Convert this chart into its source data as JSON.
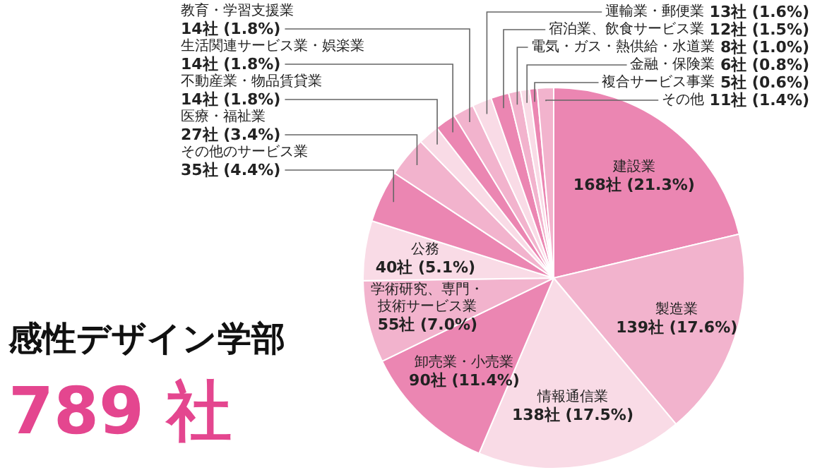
{
  "chart_data": {
    "type": "pie",
    "title": "感性デザイン学部",
    "subtitle": "789 社",
    "categories": [
      "建設業",
      "製造業",
      "情報通信業",
      "卸売業・小売業",
      "学術研究、専門・技術サービス業",
      "公務",
      "その他のサービス業",
      "医療・福祉業",
      "不動産業・物品賃貸業",
      "生活関連サービス業・娯楽業",
      "教育・学習支援業",
      "運輸業・郵便業",
      "宿泊業、飲食サービス業",
      "電気・ガス・熱供給・水道業",
      "金融・保険業",
      "複合サービス事業",
      "その他"
    ],
    "values": [
      168,
      139,
      138,
      90,
      55,
      40,
      35,
      27,
      14,
      14,
      14,
      13,
      12,
      8,
      6,
      5,
      11
    ],
    "value_labels": [
      "168社 (21.3%)",
      "139社 (17.6%)",
      "138社 (17.5%)",
      "90社 (11.4%)",
      "55社 (7.0%)",
      "40社 (5.1%)",
      "35社 (4.4%)",
      "27社 (3.4%)",
      "14社 (1.8%)",
      "14社 (1.8%)",
      "14社 (1.8%)",
      "13社 (1.6%)",
      "12社 (1.5%)",
      "8社 (1.0%)",
      "6社 (0.8%)",
      "5社 (0.6%)",
      "11社 (1.4%)"
    ],
    "colors": [
      "#eb86b2",
      "#f2b3cd",
      "#f9dbe6",
      "#eb86b2",
      "#f2b3cd",
      "#f9dbe6",
      "#eb86b2",
      "#f2b3cd",
      "#f9dbe6",
      "#eb86b2",
      "#f2b3cd",
      "#f9dbe6",
      "#eb86b2",
      "#f2b3cd",
      "#f9dbe6",
      "#eb86b2",
      "#f2b3cd"
    ],
    "legend": false
  }
}
